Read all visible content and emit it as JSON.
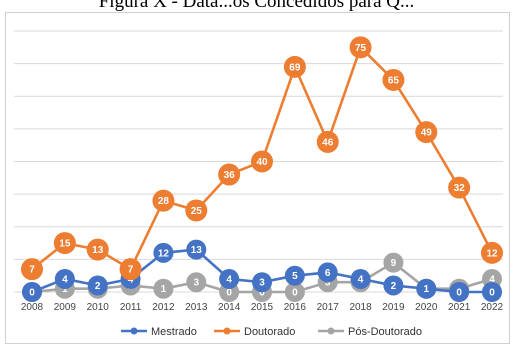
{
  "caption": "Figura X - Data...os Concedidos para Q...",
  "chart_data": {
    "type": "line",
    "title": "",
    "xlabel": "",
    "ylabel": "",
    "categories": [
      "2008",
      "2009",
      "2010",
      "2011",
      "2012",
      "2013",
      "2014",
      "2015",
      "2016",
      "2017",
      "2018",
      "2019",
      "2020",
      "2021",
      "2022"
    ],
    "series": [
      {
        "name": "Mestrado",
        "color": "#4472C4",
        "values": [
          0,
          4,
          2,
          4,
          12,
          13,
          4,
          3,
          5,
          6,
          4,
          2,
          1,
          0,
          0
        ]
      },
      {
        "name": "Doutorado",
        "color": "#ED7D31",
        "values": [
          7,
          15,
          13,
          7,
          28,
          25,
          36,
          40,
          69,
          46,
          75,
          65,
          49,
          32,
          12
        ]
      },
      {
        "name": "Pós-Doutorado",
        "color": "#A5A5A5",
        "values": [
          0,
          1,
          1,
          2,
          1,
          3,
          0,
          0,
          0,
          3,
          3,
          9,
          1,
          1,
          4
        ]
      }
    ],
    "ylim": [
      0,
      80
    ],
    "grid": true,
    "legend_position": "bottom"
  }
}
